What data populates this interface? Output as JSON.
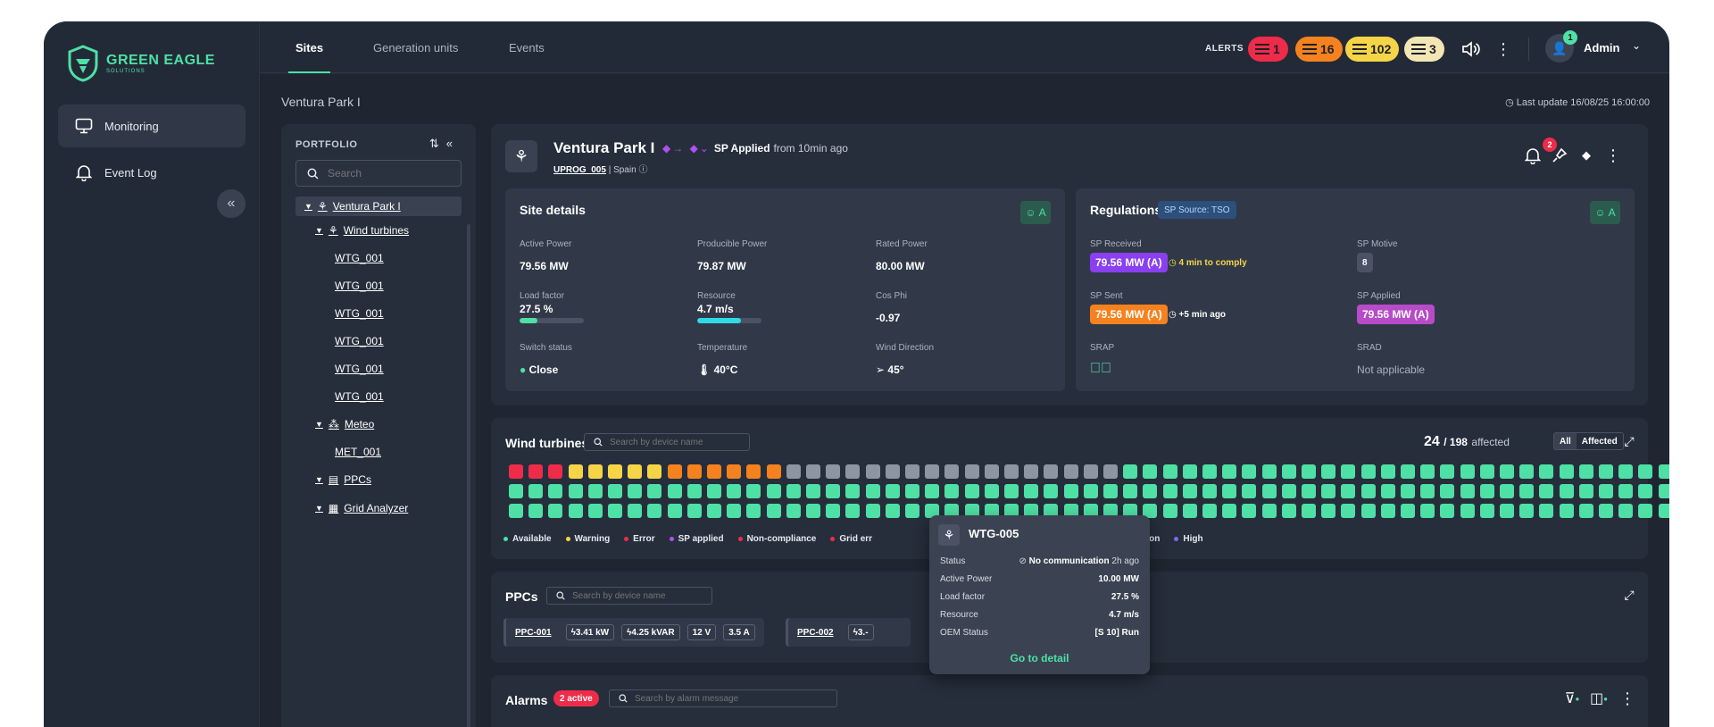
{
  "brand": {
    "name": "GREEN EAGLE",
    "sub": "SOLUTIONS",
    "color": "#4ee0a5"
  },
  "sidebar": {
    "items": [
      {
        "label": "Monitoring",
        "icon": "monitor-icon",
        "active": true
      },
      {
        "label": "Event Log",
        "icon": "bell-icon",
        "active": false
      }
    ],
    "collapse_icon": "double-chevron-left-icon"
  },
  "topbar": {
    "tabs": [
      {
        "label": "Sites",
        "active": true
      },
      {
        "label": "Generation units",
        "active": false
      },
      {
        "label": "Events",
        "active": false
      }
    ],
    "alerts_label": "ALERTS",
    "alerts": [
      {
        "count": "1",
        "color": "#ef2b4a"
      },
      {
        "count": "16",
        "color": "#f5821f"
      },
      {
        "count": "102",
        "color": "#f5d547"
      },
      {
        "count": "3",
        "color": "#f3e6b5"
      }
    ],
    "user": {
      "name": "Admin",
      "badge": "1"
    }
  },
  "breadcrumb": "Ventura Park I",
  "last_update": "Last update 16/08/25 16:00:00",
  "portfolio": {
    "title": "PORTFOLIO",
    "search_placeholder": "Search",
    "tree": {
      "site": "Ventura Park I",
      "wind_turbines": "Wind turbines",
      "turbines": [
        "WTG_001",
        "WTG_001",
        "WTG_001",
        "WTG_001",
        "WTG_001",
        "WTG_001"
      ],
      "meteo": "Meteo",
      "met": "MET_001",
      "ppcs": "PPCs",
      "grid": "Grid Analyzer"
    }
  },
  "site": {
    "name": "Ventura Park I",
    "sp_status_bold": "SP Applied",
    "sp_status_rest": "from 10min ago",
    "code": "UPROG_005",
    "country": "| Spain",
    "notif_count": "2"
  },
  "site_details": {
    "title": "Site details",
    "badge": "A",
    "fields": [
      {
        "label": "Active Power",
        "value": "79.56 MW"
      },
      {
        "label": "Producible Power",
        "value": "79.87 MW"
      },
      {
        "label": "Rated Power",
        "value": "80.00 MW"
      },
      {
        "label": "Load factor",
        "value": "27.5 %"
      },
      {
        "label": "Resource",
        "value": "4.7 m/s"
      },
      {
        "label": "Cos Phi",
        "value": "-0.97"
      },
      {
        "label": "Switch status",
        "value": "Close"
      },
      {
        "label": "Temperature",
        "value": "40°C"
      },
      {
        "label": "Wind Direction",
        "value": "45°"
      }
    ],
    "load_factor_fraction": 0.275,
    "resource_fraction": 0.68
  },
  "regulations": {
    "title": "Regulations",
    "source": "SP Source: TSO",
    "badge": "A",
    "sp_received_label": "SP Received",
    "sp_received": "79.56 MW (A)",
    "sp_received_note": "4 min to comply",
    "sp_motive_label": "SP Motive",
    "sp_motive": "8",
    "sp_sent_label": "SP Sent",
    "sp_sent": "79.56 MW (A)",
    "sp_sent_note": "+5 min ago",
    "sp_applied_label": "SP Applied",
    "sp_applied": "79.56 MW (A)",
    "srap_label": "SRAP",
    "srad_label": "SRAD",
    "srad_value": "Not applicable"
  },
  "wind_turbines": {
    "title": "Wind turbines",
    "search_placeholder": "Search by device name",
    "affected_count": "24",
    "total": "/ 198",
    "affected_word": "affected",
    "filter_all": "All",
    "filter_affected": "Affected",
    "row1": [
      "error",
      "error",
      "error",
      "warning",
      "warning",
      "warning",
      "warning",
      "warning",
      "orange",
      "orange",
      "orange",
      "orange",
      "orange",
      "orange",
      "nocomm",
      "nocomm",
      "nocomm",
      "nocomm",
      "nocomm",
      "nocomm",
      "nocomm",
      "nocomm",
      "nocomm",
      "nocomm",
      "nocomm",
      "nocomm",
      "nocomm",
      "nocomm",
      "nocomm",
      "nocomm",
      "nocomm",
      "ok",
      "ok",
      "ok",
      "ok",
      "ok",
      "ok",
      "ok",
      "ok",
      "ok",
      "ok",
      "ok",
      "ok",
      "ok",
      "ok",
      "ok",
      "ok",
      "ok",
      "ok",
      "ok",
      "ok",
      "ok",
      "ok",
      "ok",
      "ok",
      "ok",
      "ok",
      "ok",
      "ok",
      "ok",
      "ok",
      "ok",
      "ok",
      "ok",
      "ok",
      "ok",
      "ok",
      "ok"
    ],
    "colors": {
      "ok": "#4ee0a5",
      "warning": "#f5d547",
      "error": "#ef2b4a",
      "orange": "#f5821f",
      "nocomm": "#8d95a3"
    },
    "legend": [
      {
        "label": "Available",
        "color": "#4ee0a5"
      },
      {
        "label": "Warning",
        "color": "#f5d547"
      },
      {
        "label": "Error",
        "color": "#ef2b4a"
      },
      {
        "label": "SP applied",
        "color": "#b24ff0"
      },
      {
        "label": "Non-compliance",
        "color": "#ef2b4a"
      },
      {
        "label": "Grid err",
        "color": "#ef2b4a"
      },
      {
        "label": "ommunication",
        "color": "#aab2c0"
      },
      {
        "label": "High",
        "color": "#7c6cf0"
      }
    ]
  },
  "ppcs": {
    "title": "PPCs",
    "search_placeholder": "Search by device name",
    "items": [
      {
        "name": "PPC-001",
        "tags": [
          "3.41 kW",
          "4.25 kVAR",
          "12 V",
          "3.5 A"
        ]
      },
      {
        "name": "PPC-002",
        "tags": [
          "3.-"
        ]
      }
    ]
  },
  "alarms": {
    "title": "Alarms",
    "badge": "2 active",
    "search_placeholder": "Search by alarm message"
  },
  "tooltip": {
    "title": "WTG-005",
    "rows": [
      {
        "label": "Status",
        "value": "No communication",
        "extra": "2h ago"
      },
      {
        "label": "Active Power",
        "value": "10.00 MW"
      },
      {
        "label": "Load factor",
        "value": "27.5 %"
      },
      {
        "label": "Resource",
        "value": "4.7 m/s"
      },
      {
        "label": "OEM Status",
        "value": "[S 10] Run"
      }
    ],
    "link": "Go to detail"
  }
}
